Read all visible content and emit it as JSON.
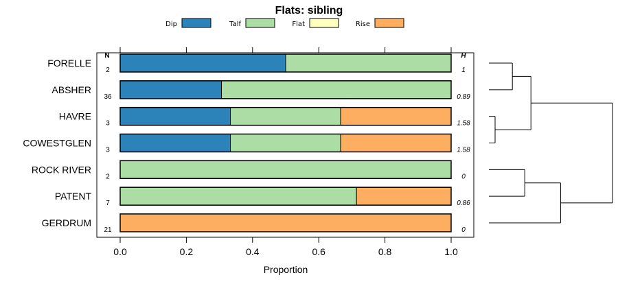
{
  "chart_data": {
    "type": "bar",
    "orientation": "horizontal",
    "stacked": true,
    "title": "Flats: sibling",
    "xlabel": "Proportion",
    "ylabel": "",
    "xlim": [
      0,
      1
    ],
    "xticks": [
      "0.0",
      "0.2",
      "0.4",
      "0.6",
      "0.8",
      "1.0"
    ],
    "xtick_values": [
      0,
      0.2,
      0.4,
      0.6,
      0.8,
      1.0
    ],
    "n_header": "N",
    "h_header": "H",
    "legend_position": "top",
    "categories": [
      "FORELLE",
      "ABSHER",
      "HAVRE",
      "COWESTGLEN",
      "ROCK RIVER",
      "PATENT",
      "GERDRUM"
    ],
    "n_values": [
      "2",
      "36",
      "3",
      "3",
      "2",
      "7",
      "21"
    ],
    "h_values": [
      "1",
      "0.89",
      "1.58",
      "1.58",
      "0",
      "0.86",
      "0"
    ],
    "series": [
      {
        "name": "Dip",
        "color": "#2b83ba",
        "values": [
          0.5,
          0.306,
          0.333,
          0.333,
          0,
          0,
          0
        ]
      },
      {
        "name": "Talf",
        "color": "#abdda4",
        "values": [
          0.5,
          0.694,
          0.333,
          0.333,
          1,
          0.714,
          0
        ]
      },
      {
        "name": "Flat",
        "color": "#ffffbf",
        "values": [
          0,
          0,
          0,
          0,
          0,
          0,
          0
        ]
      },
      {
        "name": "Rise",
        "color": "#fdae61",
        "values": [
          0,
          0,
          0.334,
          0.334,
          0,
          0.286,
          1
        ]
      }
    ],
    "dendrogram": {
      "leaves": [
        "FORELLE",
        "ABSHER",
        "HAVRE",
        "COWESTGLEN",
        "ROCK RIVER",
        "PATENT",
        "GERDRUM"
      ],
      "merges": [
        {
          "left": "FORELLE",
          "right": "ABSHER",
          "height": 0.19
        },
        {
          "left": "HAVRE",
          "right": "COWESTGLEN",
          "height": 0.05
        },
        {
          "left": "c0",
          "right": "c1",
          "height": 0.34
        },
        {
          "left": "ROCK RIVER",
          "right": "PATENT",
          "height": 0.29
        },
        {
          "left": "c3",
          "right": "GERDRUM",
          "height": 0.58
        },
        {
          "left": "c2",
          "right": "c4",
          "height": 1.0
        }
      ]
    }
  }
}
